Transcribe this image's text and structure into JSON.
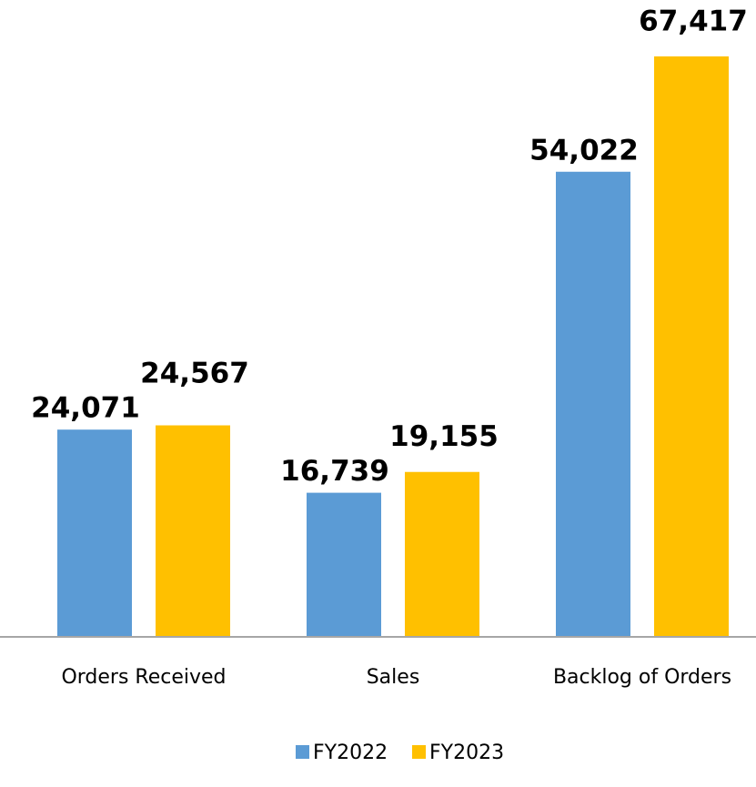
{
  "chart_data": {
    "type": "bar",
    "categories": [
      "Orders Received",
      "Sales",
      "Backlog of Orders"
    ],
    "series": [
      {
        "name": "FY2022",
        "color": "#5b9bd5",
        "values": [
          24071,
          16739,
          54022
        ],
        "value_labels": [
          "24,071",
          "16,739",
          "54,022"
        ]
      },
      {
        "name": "FY2023",
        "color": "#ffc000",
        "values": [
          24567,
          19155,
          67417
        ],
        "value_labels": [
          "24,567",
          "19,155",
          "67,417"
        ]
      }
    ],
    "legend": "bottom"
  }
}
